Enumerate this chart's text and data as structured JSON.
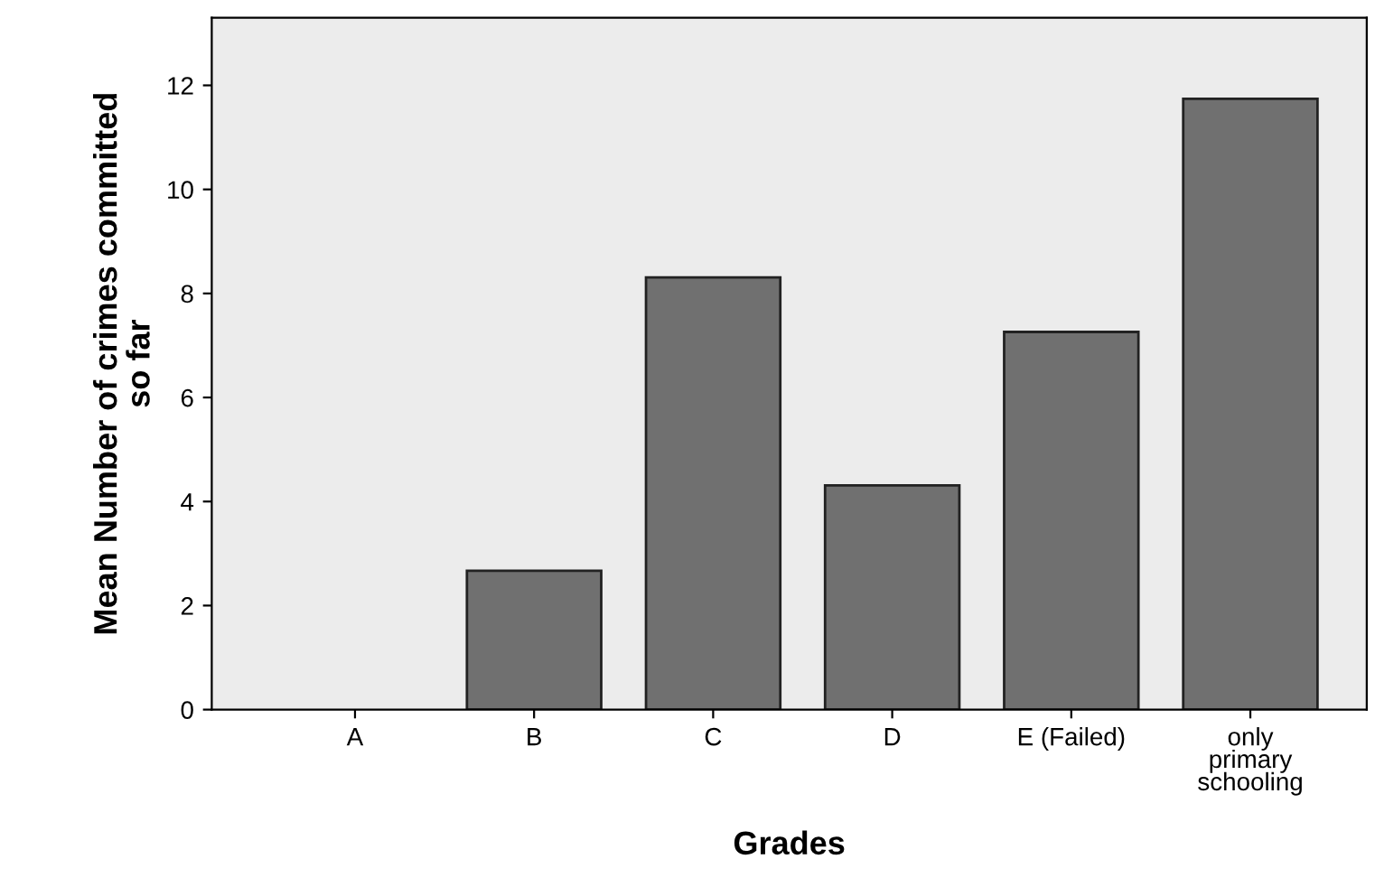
{
  "chart_data": {
    "type": "bar",
    "xlabel": "Grades",
    "ylabel": "Mean Number of crimes committed\nso far",
    "categories": [
      "A",
      "B",
      "C",
      "D",
      "E (Failed)",
      "only\nprimary\nschooling"
    ],
    "values": [
      null,
      2.67,
      8.31,
      4.31,
      7.26,
      11.74
    ],
    "color": "#707070",
    "ylim": [
      0,
      13.3
    ],
    "yticks": [
      0,
      2,
      4,
      6,
      8,
      10,
      12
    ],
    "grid": false
  }
}
